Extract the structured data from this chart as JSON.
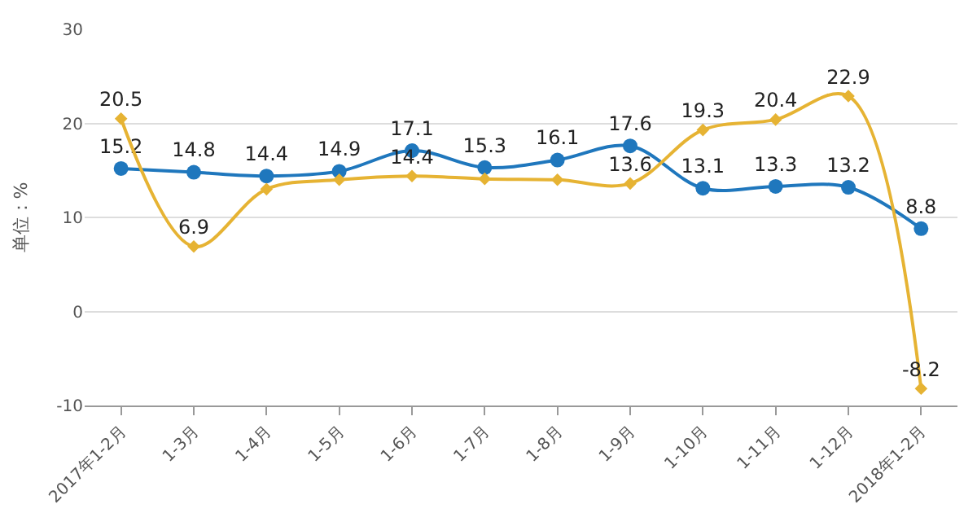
{
  "chart_data": {
    "type": "line",
    "ylabel": "单位：%",
    "categories": [
      "2017年1-2月",
      "1-3月",
      "1-4月",
      "1-5月",
      "1-6月",
      "1-7月",
      "1-8月",
      "1-9月",
      "1-10月",
      "1-11月",
      "1-12月",
      "2018年1-2月"
    ],
    "series": [
      {
        "color": "#1f77bd",
        "marker": "circle",
        "values": [
          15.2,
          14.8,
          14.4,
          14.9,
          17.1,
          15.3,
          16.1,
          17.6,
          13.1,
          13.3,
          13.2,
          8.8
        ],
        "value_labels": [
          "15.2",
          "14.8",
          "14.4",
          "14.9",
          "17.1",
          "15.3",
          "16.1",
          "17.6",
          "13.1",
          "13.3",
          "13.2",
          "8.8"
        ]
      },
      {
        "color": "#e6b333",
        "marker": "diamond",
        "values": [
          20.5,
          6.9,
          13.0,
          14.0,
          14.4,
          14.1,
          14.0,
          13.6,
          19.3,
          20.4,
          22.9,
          -8.2
        ],
        "value_labels": [
          "20.5",
          "6.9",
          null,
          null,
          "14.4",
          null,
          null,
          "13.6",
          "19.3",
          "20.4",
          "22.9",
          "-8.2"
        ]
      }
    ],
    "ylim": [
      -10,
      30
    ],
    "yticks": [
      -10,
      0,
      10,
      20,
      30
    ],
    "grid": "y",
    "legend": false
  }
}
